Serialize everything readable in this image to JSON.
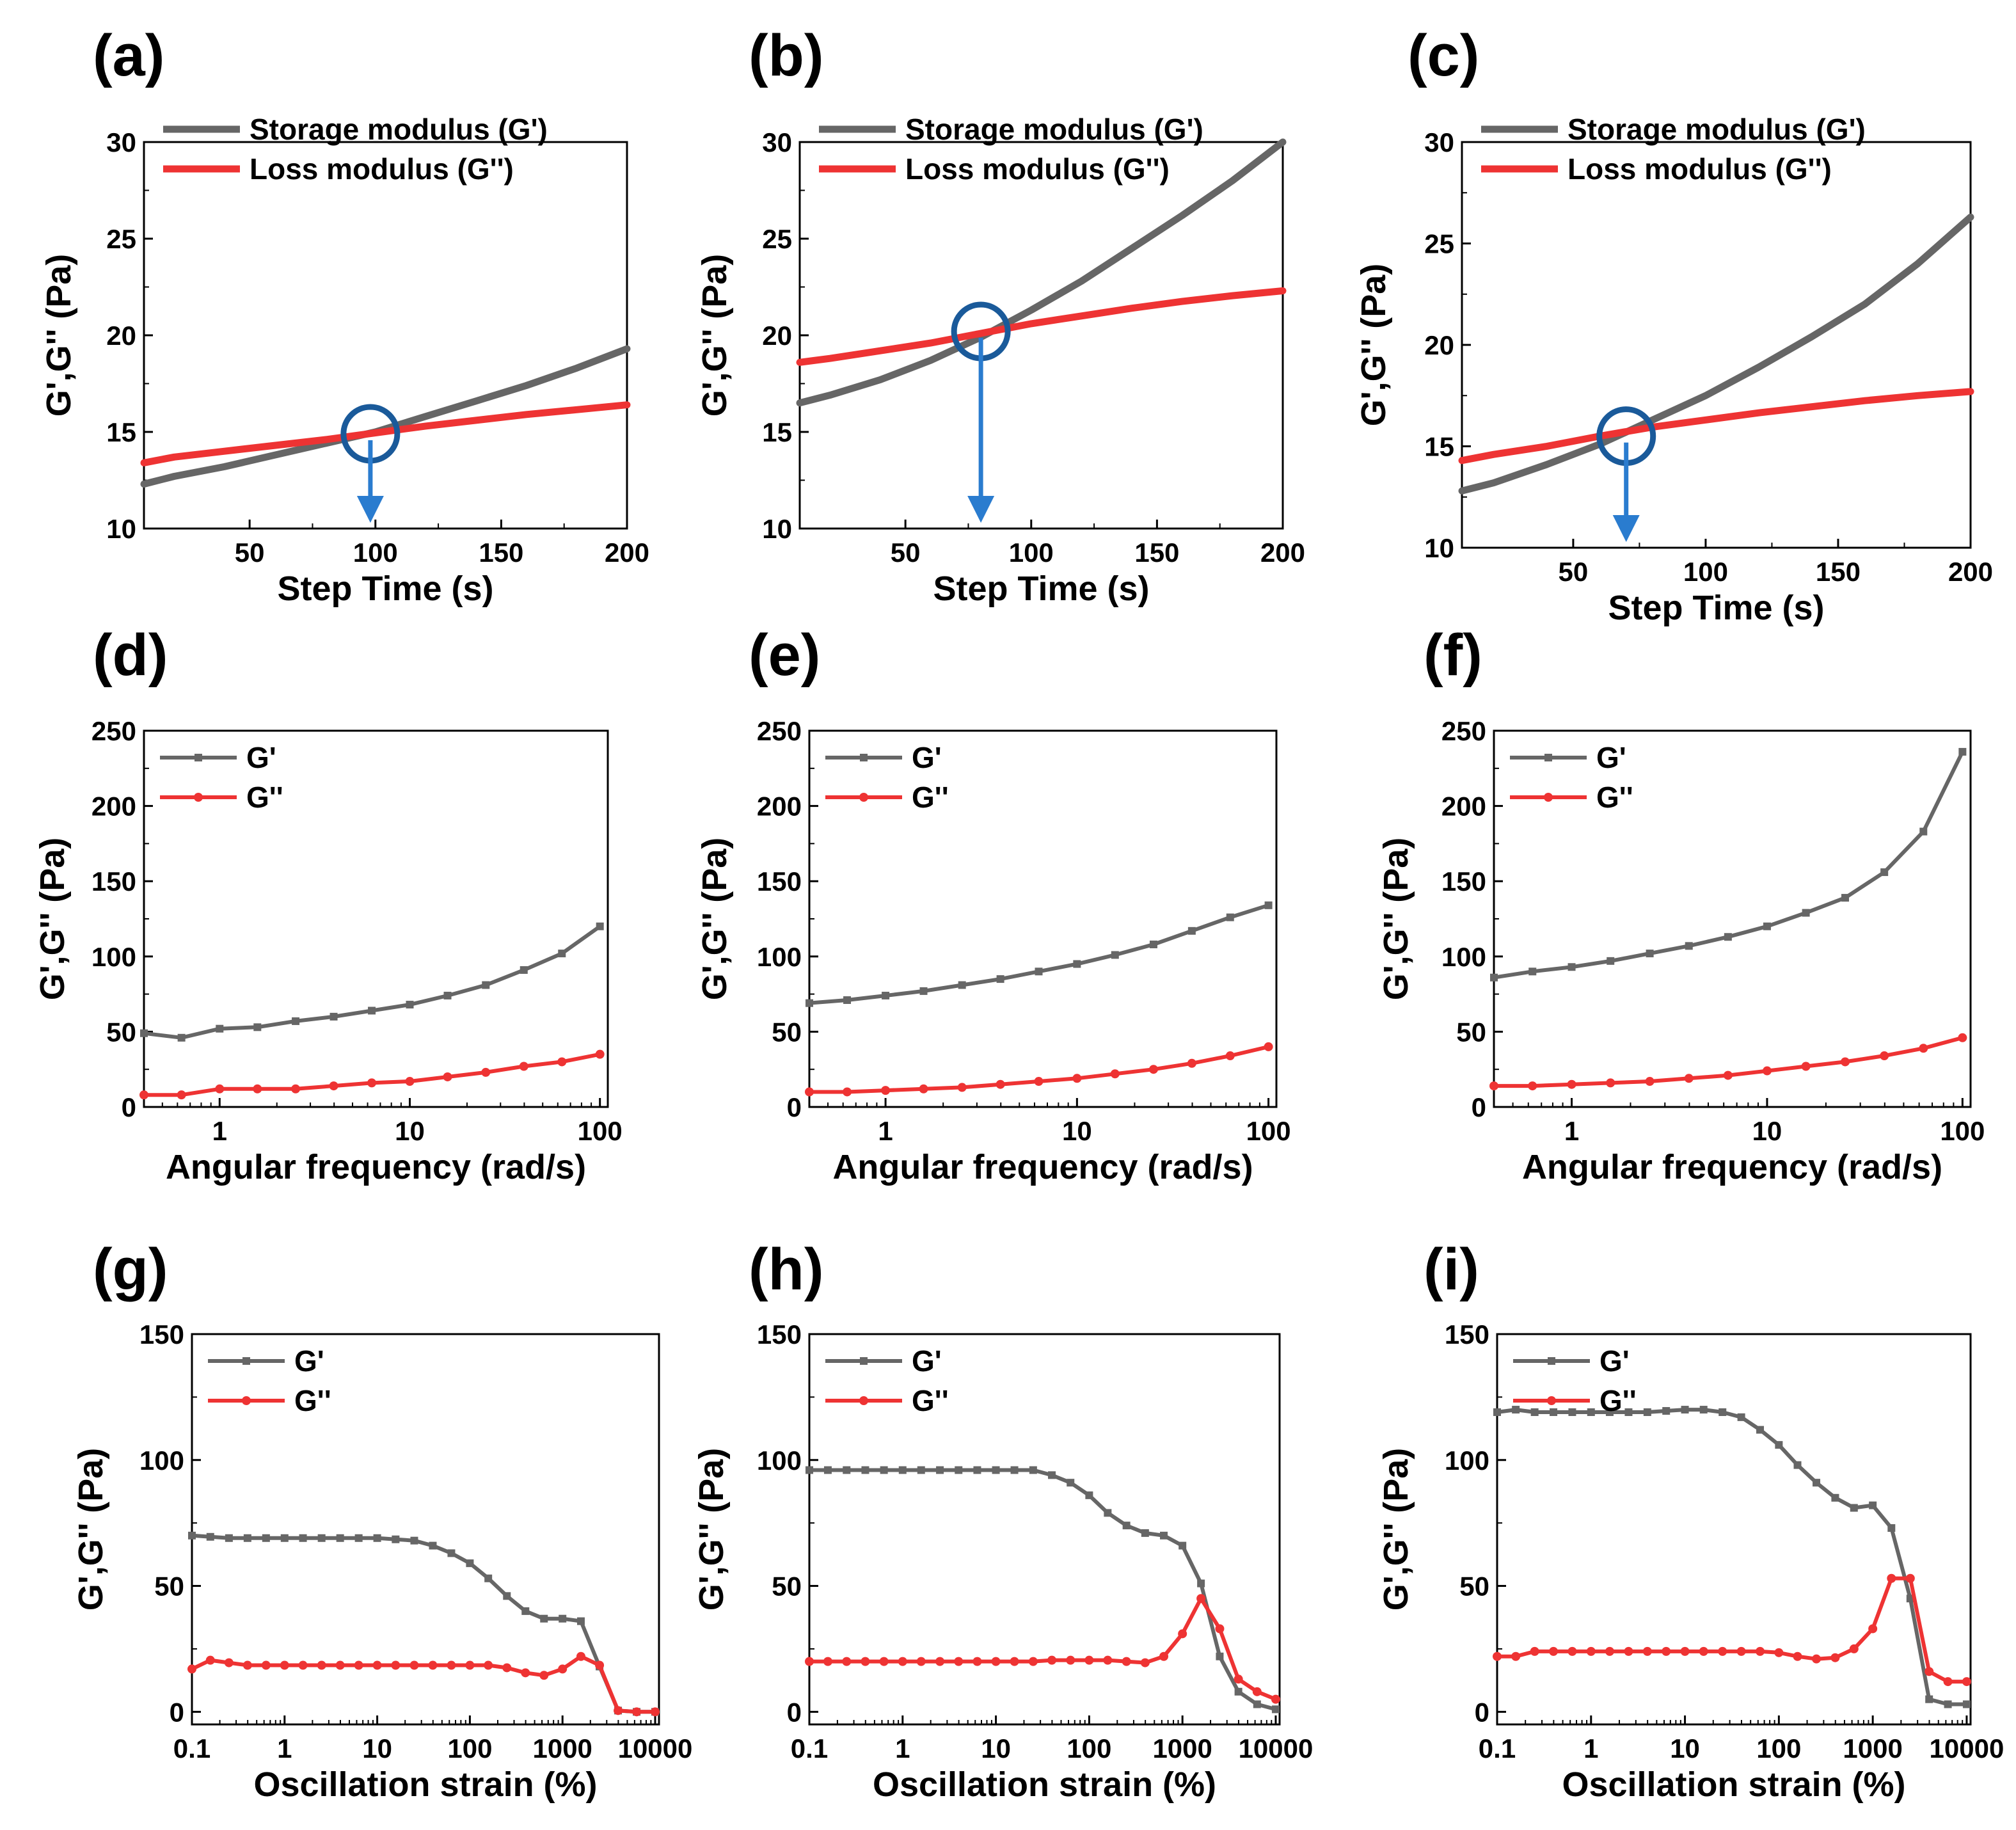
{
  "colors": {
    "gprime": "#666666",
    "gdouble": "#ee3333",
    "marker": "#1a5a9a",
    "arrow": "#2a7ccf"
  },
  "chart_data": [
    {
      "panel": "(a)",
      "type": "line",
      "xscale": "linear",
      "xlabel": "Step Time (s)",
      "ylabel": "G',G'' (Pa)",
      "xlim": [
        8,
        200
      ],
      "ylim": [
        10,
        30
      ],
      "xticks": [
        50,
        100,
        150,
        200
      ],
      "xtick_labels": [
        "50",
        "100",
        "150",
        "200"
      ],
      "yticks": [
        10,
        15,
        20,
        25,
        30
      ],
      "ytick_labels": [
        "10",
        "15",
        "20",
        "25",
        "30"
      ],
      "legend": "top-left",
      "series": [
        {
          "name": "Storage modulus (G')",
          "color_key": "gprime",
          "x": [
            8,
            20,
            40,
            60,
            80,
            100,
            120,
            140,
            160,
            180,
            200
          ],
          "y": [
            12.3,
            12.7,
            13.2,
            13.8,
            14.4,
            15.0,
            15.8,
            16.6,
            17.4,
            18.3,
            19.3
          ]
        },
        {
          "name": "Loss modulus (G'')",
          "color_key": "gdouble",
          "x": [
            8,
            20,
            40,
            60,
            80,
            100,
            120,
            140,
            160,
            180,
            200
          ],
          "y": [
            13.4,
            13.7,
            14.0,
            14.3,
            14.6,
            14.95,
            15.3,
            15.6,
            15.9,
            16.15,
            16.4
          ]
        }
      ],
      "crossover": {
        "x": 98,
        "y": 14.9
      }
    },
    {
      "panel": "(b)",
      "type": "line",
      "xscale": "linear",
      "xlabel": "Step Time (s)",
      "ylabel": "G',G'' (Pa)",
      "xlim": [
        8,
        200
      ],
      "ylim": [
        10,
        30
      ],
      "xticks": [
        50,
        100,
        150,
        200
      ],
      "xtick_labels": [
        "50",
        "100",
        "150",
        "200"
      ],
      "yticks": [
        10,
        15,
        20,
        25,
        30
      ],
      "ytick_labels": [
        "10",
        "15",
        "20",
        "25",
        "30"
      ],
      "legend": "top-left",
      "series": [
        {
          "name": "Storage modulus (G')",
          "color_key": "gprime",
          "x": [
            8,
            20,
            40,
            60,
            80,
            100,
            120,
            140,
            160,
            180,
            200
          ],
          "y": [
            16.5,
            16.9,
            17.7,
            18.7,
            19.9,
            21.3,
            22.8,
            24.5,
            26.2,
            28.0,
            30.0
          ]
        },
        {
          "name": "Loss modulus (G'')",
          "color_key": "gdouble",
          "x": [
            8,
            20,
            40,
            60,
            80,
            100,
            120,
            140,
            160,
            180,
            200
          ],
          "y": [
            18.6,
            18.8,
            19.2,
            19.6,
            20.1,
            20.6,
            21.0,
            21.4,
            21.75,
            22.05,
            22.3
          ]
        }
      ],
      "crossover": {
        "x": 80,
        "y": 20.2
      }
    },
    {
      "panel": "(c)",
      "type": "line",
      "xscale": "linear",
      "xlabel": "Step Time (s)",
      "ylabel": "G',G'' (Pa)",
      "xlim": [
        8,
        200
      ],
      "ylim": [
        10,
        30
      ],
      "xticks": [
        50,
        100,
        150,
        200
      ],
      "xtick_labels": [
        "50",
        "100",
        "150",
        "200"
      ],
      "yticks": [
        10,
        15,
        20,
        25,
        30
      ],
      "ytick_labels": [
        "10",
        "15",
        "20",
        "25",
        "30"
      ],
      "legend": "top-left",
      "series": [
        {
          "name": "Storage modulus (G')",
          "color_key": "gprime",
          "x": [
            8,
            20,
            40,
            60,
            80,
            100,
            120,
            140,
            160,
            180,
            200
          ],
          "y": [
            12.8,
            13.2,
            14.1,
            15.1,
            16.3,
            17.5,
            18.9,
            20.4,
            22.0,
            24.0,
            26.3
          ]
        },
        {
          "name": "Loss modulus (G'')",
          "color_key": "gdouble",
          "x": [
            8,
            20,
            40,
            60,
            80,
            100,
            120,
            140,
            160,
            180,
            200
          ],
          "y": [
            14.3,
            14.6,
            15.0,
            15.5,
            15.95,
            16.3,
            16.65,
            16.95,
            17.25,
            17.5,
            17.7
          ]
        }
      ],
      "crossover": {
        "x": 70,
        "y": 15.5
      }
    },
    {
      "panel": "(d)",
      "type": "line",
      "xscale": "log",
      "xlabel": "Angular frequency (rad/s)",
      "ylabel": "G',G'' (Pa)",
      "xlim": [
        0.4,
        110
      ],
      "ylim": [
        0,
        250
      ],
      "xticks": [
        1,
        10,
        100
      ],
      "xtick_labels": [
        "1",
        "10",
        "100"
      ],
      "yticks": [
        0,
        50,
        100,
        150,
        200,
        250
      ],
      "ytick_labels": [
        "0",
        "50",
        "100",
        "150",
        "200",
        "250"
      ],
      "legend": "top-left",
      "series": [
        {
          "name": "G'",
          "color_key": "gprime",
          "x": [
            0.4,
            0.63,
            1,
            1.58,
            2.51,
            3.98,
            6.31,
            10,
            15.8,
            25.1,
            39.8,
            63.1,
            100
          ],
          "y": [
            49,
            46,
            52,
            53,
            57,
            60,
            64,
            68,
            74,
            81,
            91,
            102,
            120
          ]
        },
        {
          "name": "G''",
          "color_key": "gdouble",
          "x": [
            0.4,
            0.63,
            1,
            1.58,
            2.51,
            3.98,
            6.31,
            10,
            15.8,
            25.1,
            39.8,
            63.1,
            100
          ],
          "y": [
            8,
            8,
            12,
            12,
            12,
            14,
            16,
            17,
            20,
            23,
            27,
            30,
            35
          ]
        }
      ]
    },
    {
      "panel": "(e)",
      "type": "line",
      "xscale": "log",
      "xlabel": "Angular frequency (rad/s)",
      "ylabel": "G',G'' (Pa)",
      "xlim": [
        0.4,
        110
      ],
      "ylim": [
        0,
        250
      ],
      "xticks": [
        1,
        10,
        100
      ],
      "xtick_labels": [
        "1",
        "10",
        "100"
      ],
      "yticks": [
        0,
        50,
        100,
        150,
        200,
        250
      ],
      "ytick_labels": [
        "0",
        "50",
        "100",
        "150",
        "200",
        "250"
      ],
      "legend": "top-left",
      "series": [
        {
          "name": "G'",
          "color_key": "gprime",
          "x": [
            0.4,
            0.63,
            1,
            1.58,
            2.51,
            3.98,
            6.31,
            10,
            15.8,
            25.1,
            39.8,
            63.1,
            100
          ],
          "y": [
            69,
            71,
            74,
            77,
            81,
            85,
            90,
            95,
            101,
            108,
            117,
            126,
            134
          ]
        },
        {
          "name": "G''",
          "color_key": "gdouble",
          "x": [
            0.4,
            0.63,
            1,
            1.58,
            2.51,
            3.98,
            6.31,
            10,
            15.8,
            25.1,
            39.8,
            63.1,
            100
          ],
          "y": [
            10,
            10,
            11,
            12,
            13,
            15,
            17,
            19,
            22,
            25,
            29,
            34,
            40
          ]
        }
      ]
    },
    {
      "panel": "(f)",
      "type": "line",
      "xscale": "log",
      "xlabel": "Angular frequency (rad/s)",
      "ylabel": "G',G'' (Pa)",
      "xlim": [
        0.4,
        110
      ],
      "ylim": [
        0,
        250
      ],
      "xticks": [
        1,
        10,
        100
      ],
      "xtick_labels": [
        "1",
        "10",
        "100"
      ],
      "yticks": [
        0,
        50,
        100,
        150,
        200,
        250
      ],
      "ytick_labels": [
        "0",
        "50",
        "100",
        "150",
        "200",
        "250"
      ],
      "legend": "top-left",
      "series": [
        {
          "name": "G'",
          "color_key": "gprime",
          "x": [
            0.4,
            0.63,
            1,
            1.58,
            2.51,
            3.98,
            6.31,
            10,
            15.8,
            25.1,
            39.8,
            63.1,
            100
          ],
          "y": [
            86,
            90,
            93,
            97,
            102,
            107,
            113,
            120,
            129,
            139,
            156,
            183,
            236
          ]
        },
        {
          "name": "G''",
          "color_key": "gdouble",
          "x": [
            0.4,
            0.63,
            1,
            1.58,
            2.51,
            3.98,
            6.31,
            10,
            15.8,
            25.1,
            39.8,
            63.1,
            100
          ],
          "y": [
            14,
            14,
            15,
            16,
            17,
            19,
            21,
            24,
            27,
            30,
            34,
            39,
            46
          ]
        }
      ]
    },
    {
      "panel": "(g)",
      "type": "line",
      "xscale": "log",
      "xlabel": "Oscillation strain (%)",
      "ylabel": "G',G'' (Pa)",
      "xlim": [
        0.1,
        11000
      ],
      "ylim": [
        -5,
        150
      ],
      "xticks": [
        0.1,
        1,
        10,
        100,
        1000,
        10000
      ],
      "xtick_labels": [
        "0.1",
        "1",
        "10",
        "100",
        "1000",
        "10000"
      ],
      "yticks": [
        0,
        50,
        100,
        150
      ],
      "ytick_labels": [
        "0",
        "50",
        "100",
        "150"
      ],
      "legend": "top-left",
      "series": [
        {
          "name": "G'",
          "color_key": "gprime",
          "x": [
            0.1,
            0.158,
            0.251,
            0.398,
            0.631,
            1,
            1.58,
            2.51,
            3.98,
            6.31,
            10,
            15.8,
            25.1,
            39.8,
            63.1,
            100,
            158,
            251,
            398,
            631,
            1000,
            1580,
            2510,
            3980,
            6310,
            10000
          ],
          "y": [
            70,
            69.5,
            69,
            69,
            69,
            69,
            69,
            69,
            69,
            69,
            69,
            68.5,
            68,
            66,
            63,
            59,
            53,
            46,
            40,
            37,
            37,
            36,
            18,
            0.5,
            0,
            0
          ]
        },
        {
          "name": "G''",
          "color_key": "gdouble",
          "x": [
            0.1,
            0.158,
            0.251,
            0.398,
            0.631,
            1,
            1.58,
            2.51,
            3.98,
            6.31,
            10,
            15.8,
            25.1,
            39.8,
            63.1,
            100,
            158,
            251,
            398,
            631,
            1000,
            1580,
            2510,
            3980,
            6310,
            10000
          ],
          "y": [
            17,
            20.5,
            19.5,
            18.5,
            18.5,
            18.5,
            18.5,
            18.5,
            18.5,
            18.5,
            18.5,
            18.5,
            18.5,
            18.5,
            18.5,
            18.5,
            18.5,
            17.5,
            15.5,
            14.5,
            17,
            22,
            18.5,
            0.5,
            0,
            0
          ]
        }
      ]
    },
    {
      "panel": "(h)",
      "type": "line",
      "xscale": "log",
      "xlabel": "Oscillation strain (%)",
      "ylabel": "G',G'' (Pa)",
      "xlim": [
        0.1,
        11000
      ],
      "ylim": [
        -5,
        150
      ],
      "xticks": [
        0.1,
        1,
        10,
        100,
        1000,
        10000
      ],
      "xtick_labels": [
        "0.1",
        "1",
        "10",
        "100",
        "1000",
        "10000"
      ],
      "yticks": [
        0,
        50,
        100,
        150
      ],
      "ytick_labels": [
        "0",
        "50",
        "100",
        "150"
      ],
      "legend": "top-left",
      "series": [
        {
          "name": "G'",
          "color_key": "gprime",
          "x": [
            0.1,
            0.158,
            0.251,
            0.398,
            0.631,
            1,
            1.58,
            2.51,
            3.98,
            6.31,
            10,
            15.8,
            25.1,
            39.8,
            63.1,
            100,
            158,
            251,
            398,
            631,
            1000,
            1580,
            2510,
            3980,
            6310,
            10000
          ],
          "y": [
            96,
            96,
            96,
            96,
            96,
            96,
            96,
            96,
            96,
            96,
            96,
            96,
            96,
            94,
            91,
            86,
            79,
            74,
            71,
            70,
            66,
            51,
            22,
            8,
            3,
            1
          ]
        },
        {
          "name": "G''",
          "color_key": "gdouble",
          "x": [
            0.1,
            0.158,
            0.251,
            0.398,
            0.631,
            1,
            1.58,
            2.51,
            3.98,
            6.31,
            10,
            15.8,
            25.1,
            39.8,
            63.1,
            100,
            158,
            251,
            398,
            631,
            1000,
            1580,
            2510,
            3980,
            6310,
            10000
          ],
          "y": [
            20,
            20,
            20,
            20,
            20,
            20,
            20,
            20,
            20,
            20,
            20,
            20,
            20,
            20.5,
            20.5,
            20.5,
            20.5,
            20,
            19.5,
            22,
            31,
            45,
            33,
            13,
            8,
            5
          ]
        }
      ]
    },
    {
      "panel": "(i)",
      "type": "line",
      "xscale": "log",
      "xlabel": "Oscillation strain (%)",
      "ylabel": "G',G'' (Pa)",
      "xlim": [
        0.1,
        11000
      ],
      "ylim": [
        -5,
        150
      ],
      "xticks": [
        0.1,
        1,
        10,
        100,
        1000,
        10000
      ],
      "xtick_labels": [
        "0.1",
        "1",
        "10",
        "100",
        "1000",
        "10000"
      ],
      "yticks": [
        0,
        50,
        100,
        150
      ],
      "ytick_labels": [
        "0",
        "50",
        "100",
        "150"
      ],
      "legend": "top-left",
      "series": [
        {
          "name": "G'",
          "color_key": "gprime",
          "x": [
            0.1,
            0.158,
            0.251,
            0.398,
            0.631,
            1,
            1.58,
            2.51,
            3.98,
            6.31,
            10,
            15.8,
            25.1,
            39.8,
            63.1,
            100,
            158,
            251,
            398,
            631,
            1000,
            1580,
            2510,
            3980,
            6310,
            10000
          ],
          "y": [
            119,
            120,
            119,
            119,
            119,
            119,
            119,
            119,
            119,
            119.5,
            120,
            120,
            119,
            117,
            112,
            106,
            98,
            91,
            85,
            81,
            82,
            73,
            45,
            5,
            3,
            3
          ]
        },
        {
          "name": "G''",
          "color_key": "gdouble",
          "x": [
            0.1,
            0.158,
            0.251,
            0.398,
            0.631,
            1,
            1.58,
            2.51,
            3.98,
            6.31,
            10,
            15.8,
            25.1,
            39.8,
            63.1,
            100,
            158,
            251,
            398,
            631,
            1000,
            1580,
            2510,
            3980,
            6310,
            10000
          ],
          "y": [
            22,
            22,
            24,
            24,
            24,
            24,
            24,
            24,
            24,
            24,
            24,
            24,
            24,
            24,
            24,
            23.5,
            22,
            21,
            21.5,
            25,
            33,
            53,
            53,
            16,
            12,
            12
          ]
        }
      ]
    }
  ]
}
